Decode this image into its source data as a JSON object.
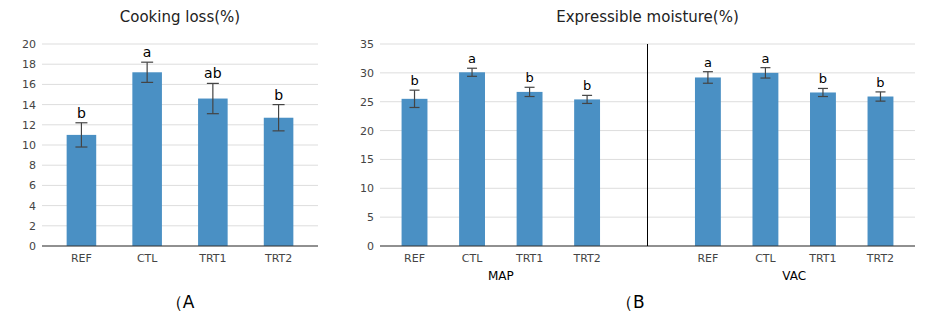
{
  "chart_data": [
    {
      "type": "bar",
      "title": "Cooking loss(%)",
      "categories": [
        "REF",
        "CTL",
        "TRT1",
        "TRT2"
      ],
      "values": [
        11.0,
        17.2,
        14.6,
        12.7
      ],
      "errors": [
        1.2,
        1.0,
        1.5,
        1.3
      ],
      "letters": [
        "b",
        "a",
        "ab",
        "b"
      ],
      "xlabel": "（A",
      "color": "#4A90C4",
      "ylim": [
        0,
        20
      ],
      "yticks": [
        0,
        2,
        4,
        6,
        8,
        10,
        12,
        14,
        16,
        18,
        20
      ],
      "grid": true
    },
    {
      "type": "bar",
      "title": "Expressible moisture(%)",
      "categories": [
        "REF",
        "CTL",
        "TRT1",
        "TRT2",
        "REF",
        "CTL",
        "TRT1",
        "TRT2"
      ],
      "values": [
        25.5,
        30.1,
        26.7,
        25.4,
        29.2,
        30.0,
        26.6,
        25.9
      ],
      "errors": [
        1.5,
        0.7,
        0.8,
        0.7,
        1.0,
        0.9,
        0.7,
        0.8
      ],
      "letters": [
        "b",
        "a",
        "b",
        "b",
        "a",
        "a",
        "b",
        "b"
      ],
      "group_labels": [
        "MAP",
        "VAC"
      ],
      "xlabel": "（B",
      "color": "#4A90C4",
      "ylim": [
        0,
        35
      ],
      "yticks": [
        0,
        5,
        10,
        15,
        20,
        25,
        30,
        35
      ],
      "grid": true
    }
  ]
}
